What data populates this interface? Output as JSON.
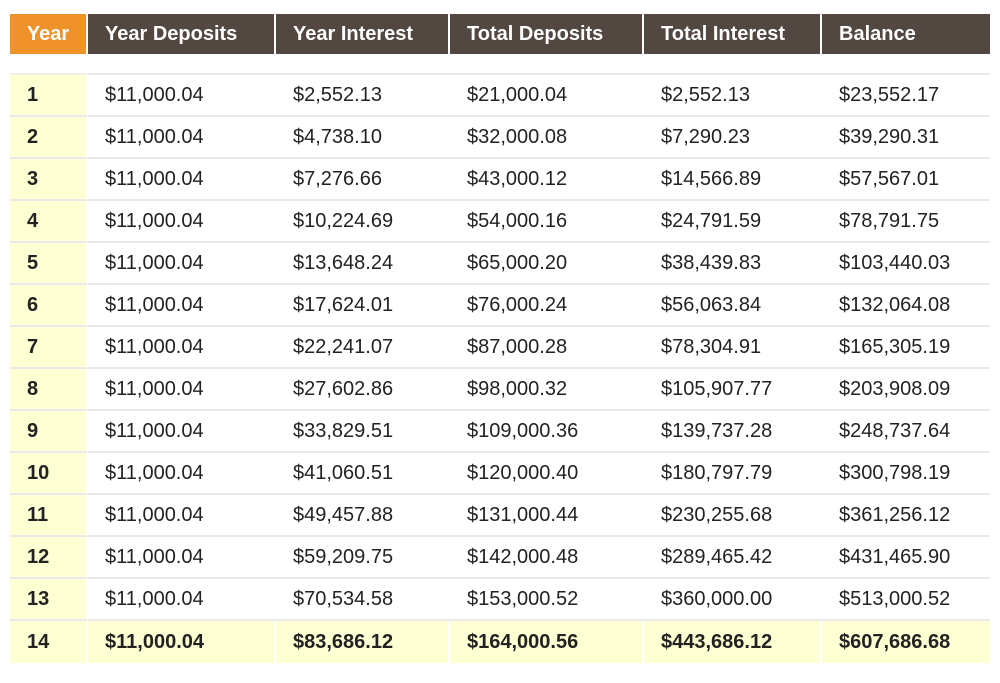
{
  "table": {
    "headers": [
      "Year",
      "Year Deposits",
      "Year Interest",
      "Total Deposits",
      "Total Interest",
      "Balance"
    ],
    "rows": [
      [
        "1",
        "$11,000.04",
        "$2,552.13",
        "$21,000.04",
        "$2,552.13",
        "$23,552.17"
      ],
      [
        "2",
        "$11,000.04",
        "$4,738.10",
        "$32,000.08",
        "$7,290.23",
        "$39,290.31"
      ],
      [
        "3",
        "$11,000.04",
        "$7,276.66",
        "$43,000.12",
        "$14,566.89",
        "$57,567.01"
      ],
      [
        "4",
        "$11,000.04",
        "$10,224.69",
        "$54,000.16",
        "$24,791.59",
        "$78,791.75"
      ],
      [
        "5",
        "$11,000.04",
        "$13,648.24",
        "$65,000.20",
        "$38,439.83",
        "$103,440.03"
      ],
      [
        "6",
        "$11,000.04",
        "$17,624.01",
        "$76,000.24",
        "$56,063.84",
        "$132,064.08"
      ],
      [
        "7",
        "$11,000.04",
        "$22,241.07",
        "$87,000.28",
        "$78,304.91",
        "$165,305.19"
      ],
      [
        "8",
        "$11,000.04",
        "$27,602.86",
        "$98,000.32",
        "$105,907.77",
        "$203,908.09"
      ],
      [
        "9",
        "$11,000.04",
        "$33,829.51",
        "$109,000.36",
        "$139,737.28",
        "$248,737.64"
      ],
      [
        "10",
        "$11,000.04",
        "$41,060.51",
        "$120,000.40",
        "$180,797.79",
        "$300,798.19"
      ],
      [
        "11",
        "$11,000.04",
        "$49,457.88",
        "$131,000.44",
        "$230,255.68",
        "$361,256.12"
      ],
      [
        "12",
        "$11,000.04",
        "$59,209.75",
        "$142,000.48",
        "$289,465.42",
        "$431,465.90"
      ],
      [
        "13",
        "$11,000.04",
        "$70,534.58",
        "$153,000.52",
        "$360,000.00",
        "$513,000.52"
      ]
    ],
    "total_row": [
      "14",
      "$11,000.04",
      "$83,686.12",
      "$164,000.56",
      "$443,686.12",
      "$607,686.68"
    ]
  },
  "colors": {
    "header_bg": "#534741",
    "year_header_bg": "#f0922a",
    "highlight_bg": "#ffffd4",
    "row_divider": "#e9e9e9"
  }
}
